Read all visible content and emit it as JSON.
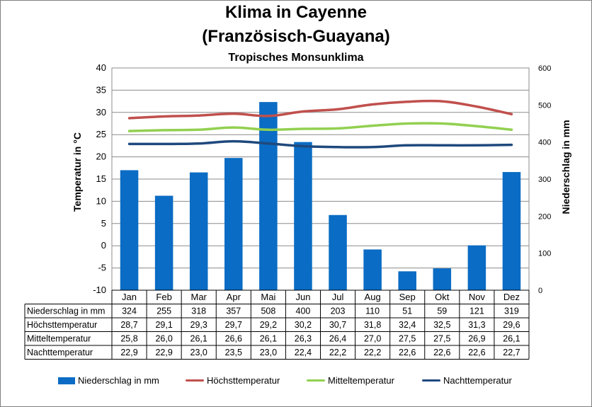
{
  "title": "Klima in Cayenne",
  "title_line2": "(Französisch-Guayana)",
  "subtitle": "Tropisches Monsunklima",
  "chart_data": {
    "type": "bar",
    "categories": [
      "Jan",
      "Feb",
      "Mar",
      "Apr",
      "Mai",
      "Jun",
      "Jul",
      "Aug",
      "Sep",
      "Okt",
      "Nov",
      "Dez"
    ],
    "ylabel": "Temperatur in °C",
    "y2label": "Niederschlag in mm",
    "ylim": [
      -10,
      40
    ],
    "y2lim": [
      0,
      600
    ],
    "yticks": [
      "40",
      "35",
      "30",
      "25",
      "20",
      "15",
      "10",
      "5",
      "0",
      "-5",
      "-10"
    ],
    "y2ticks": [
      "600",
      "500",
      "400",
      "300",
      "200",
      "100",
      "0"
    ],
    "grid": true,
    "legend_position": "bottom",
    "series": [
      {
        "name": "Niederschlag in mm",
        "type": "bar",
        "axis": "right",
        "color": "#0a6cc4",
        "values": [
          324,
          255,
          318,
          357,
          508,
          400,
          203,
          110,
          51,
          59,
          121,
          319
        ],
        "labels": [
          "324",
          "255",
          "318",
          "357",
          "508",
          "400",
          "203",
          "110",
          "51",
          "59",
          "121",
          "319"
        ]
      },
      {
        "name": "Höchsttemperatur",
        "type": "line",
        "axis": "left",
        "color": "#c0504d",
        "values": [
          28.7,
          29.1,
          29.3,
          29.7,
          29.2,
          30.2,
          30.7,
          31.8,
          32.4,
          32.5,
          31.3,
          29.6
        ],
        "labels": [
          "28,7",
          "29,1",
          "29,3",
          "29,7",
          "29,2",
          "30,2",
          "30,7",
          "31,8",
          "32,4",
          "32,5",
          "31,3",
          "29,6"
        ]
      },
      {
        "name": "Mitteltemperatur",
        "type": "line",
        "axis": "left",
        "color": "#92d050",
        "values": [
          25.8,
          26.0,
          26.1,
          26.6,
          26.1,
          26.3,
          26.4,
          27.0,
          27.5,
          27.5,
          26.9,
          26.1
        ],
        "labels": [
          "25,8",
          "26,0",
          "26,1",
          "26,6",
          "26,1",
          "26,3",
          "26,4",
          "27,0",
          "27,5",
          "27,5",
          "26,9",
          "26,1"
        ]
      },
      {
        "name": "Nachttemperatur",
        "type": "line",
        "axis": "left",
        "color": "#1f497d",
        "values": [
          22.9,
          22.9,
          23.0,
          23.5,
          23.0,
          22.4,
          22.2,
          22.2,
          22.6,
          22.6,
          22.6,
          22.7
        ],
        "labels": [
          "22,9",
          "22,9",
          "23,0",
          "23,5",
          "23,0",
          "22,4",
          "22,2",
          "22,2",
          "22,6",
          "22,6",
          "22,6",
          "22,7"
        ]
      }
    ]
  }
}
